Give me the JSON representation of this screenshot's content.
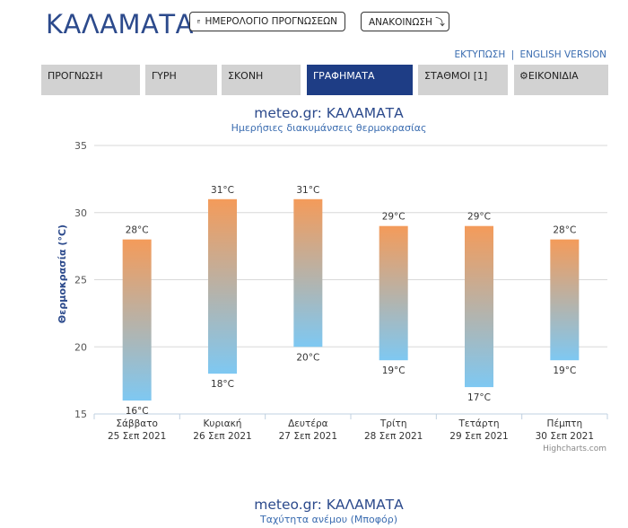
{
  "header": {
    "city": "ΚΑΛΑΜΑΤΑ",
    "calendar_button": "ΗΜΕΡΟΛΟΓΙΟ ΠΡΟΓΝΩΣΕΩΝ",
    "announcement_button": "ΑΝΑΚΟΙΝΩΣΗ ⤵",
    "print_link": "ΕΚΤΥΠΩΣΗ",
    "separator": "|",
    "english_link": "ENGLISH VERSION"
  },
  "tabs": [
    {
      "label": "ΠΡΟΓΝΩΣΗ",
      "active": false
    },
    {
      "label": "ΓΥΡΗ",
      "active": false
    },
    {
      "label": "ΣΚΟΝΗ",
      "active": false
    },
    {
      "label": "ΓΡΑΦΗΜΑΤΑ",
      "active": true
    },
    {
      "label": "ΣΤΑΘΜΟΙ [1]",
      "active": false
    },
    {
      "label": "ΕΙΚΟΝΙΔΙΑ",
      "active": false,
      "icon": "gear-icon"
    }
  ],
  "colors": {
    "accent": "#1e3d85",
    "title": "#2c4a8c",
    "link": "#3a6cb0",
    "bar_top": "#f49b5a",
    "bar_bottom": "#7ec8f2"
  },
  "chart1": {
    "title": "meteo.gr: ΚΑΛΑΜΑΤΑ",
    "subtitle": "Ημερήσιες διακυμάνσεις θερμοκρασίας",
    "credit": "Highcharts.com"
  },
  "chart_data": {
    "type": "bar",
    "subtype": "columnrange",
    "title": "meteo.gr: ΚΑΛΑΜΑΤΑ",
    "subtitle": "Ημερήσιες διακυμάνσεις θερμοκρασίας",
    "ylabel": "Θερμοκρασία (°C)",
    "ylim": [
      15,
      35
    ],
    "yticks": [
      15,
      20,
      25,
      30,
      35
    ],
    "grid": true,
    "categories": [
      [
        "Σάββατο",
        "25 Σεπ 2021"
      ],
      [
        "Κυριακή",
        "26 Σεπ 2021"
      ],
      [
        "Δευτέρα",
        "27 Σεπ 2021"
      ],
      [
        "Τρίτη",
        "28 Σεπ 2021"
      ],
      [
        "Τετάρτη",
        "29 Σεπ 2021"
      ],
      [
        "Πέμπτη",
        "30 Σεπ 2021"
      ]
    ],
    "min": [
      16,
      18,
      20,
      19,
      17,
      19
    ],
    "max": [
      28,
      31,
      31,
      29,
      29,
      28
    ],
    "unit": "°C"
  },
  "chart2": {
    "title": "meteo.gr: ΚΑΛΑΜΑΤΑ",
    "subtitle": "Ταχύτητα ανέμου (Μποφόρ)"
  }
}
